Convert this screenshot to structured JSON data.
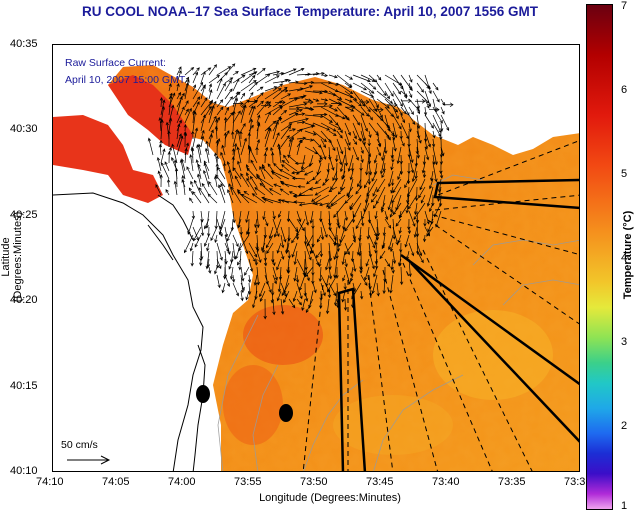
{
  "title": "RU COOL  NOAA–17  Sea Surface Temperature:  April 10, 2007 1556 GMT",
  "legend": {
    "line1": "Raw Surface Current:",
    "line2": "April 10, 2007 15:00 GMT",
    "scale": "50 cm/s"
  },
  "axes": {
    "ylabel": "Latitude (Degrees:Minutes)",
    "xlabel": "Longitude (Degrees:Minutes)",
    "yticks": [
      "40:35",
      "40:30",
      "40:25",
      "40:20",
      "40:15",
      "40:10"
    ],
    "xticks": [
      "74:10",
      "74:05",
      "74:00",
      "73:55",
      "73:50",
      "73:45",
      "73:40",
      "73:35",
      "73:3"
    ]
  },
  "colorbar": {
    "label": "Temperature (°C)",
    "ticks": [
      "7",
      "6",
      "5",
      "4",
      "3",
      "2",
      "1"
    ],
    "range": [
      1,
      7
    ]
  },
  "colors": {
    "title": "#1b1b9a",
    "land": "#ffffff",
    "sst_warm": "#f07a10",
    "sst_hot": "#e2231a",
    "sst_cool": "#f5a522"
  }
}
